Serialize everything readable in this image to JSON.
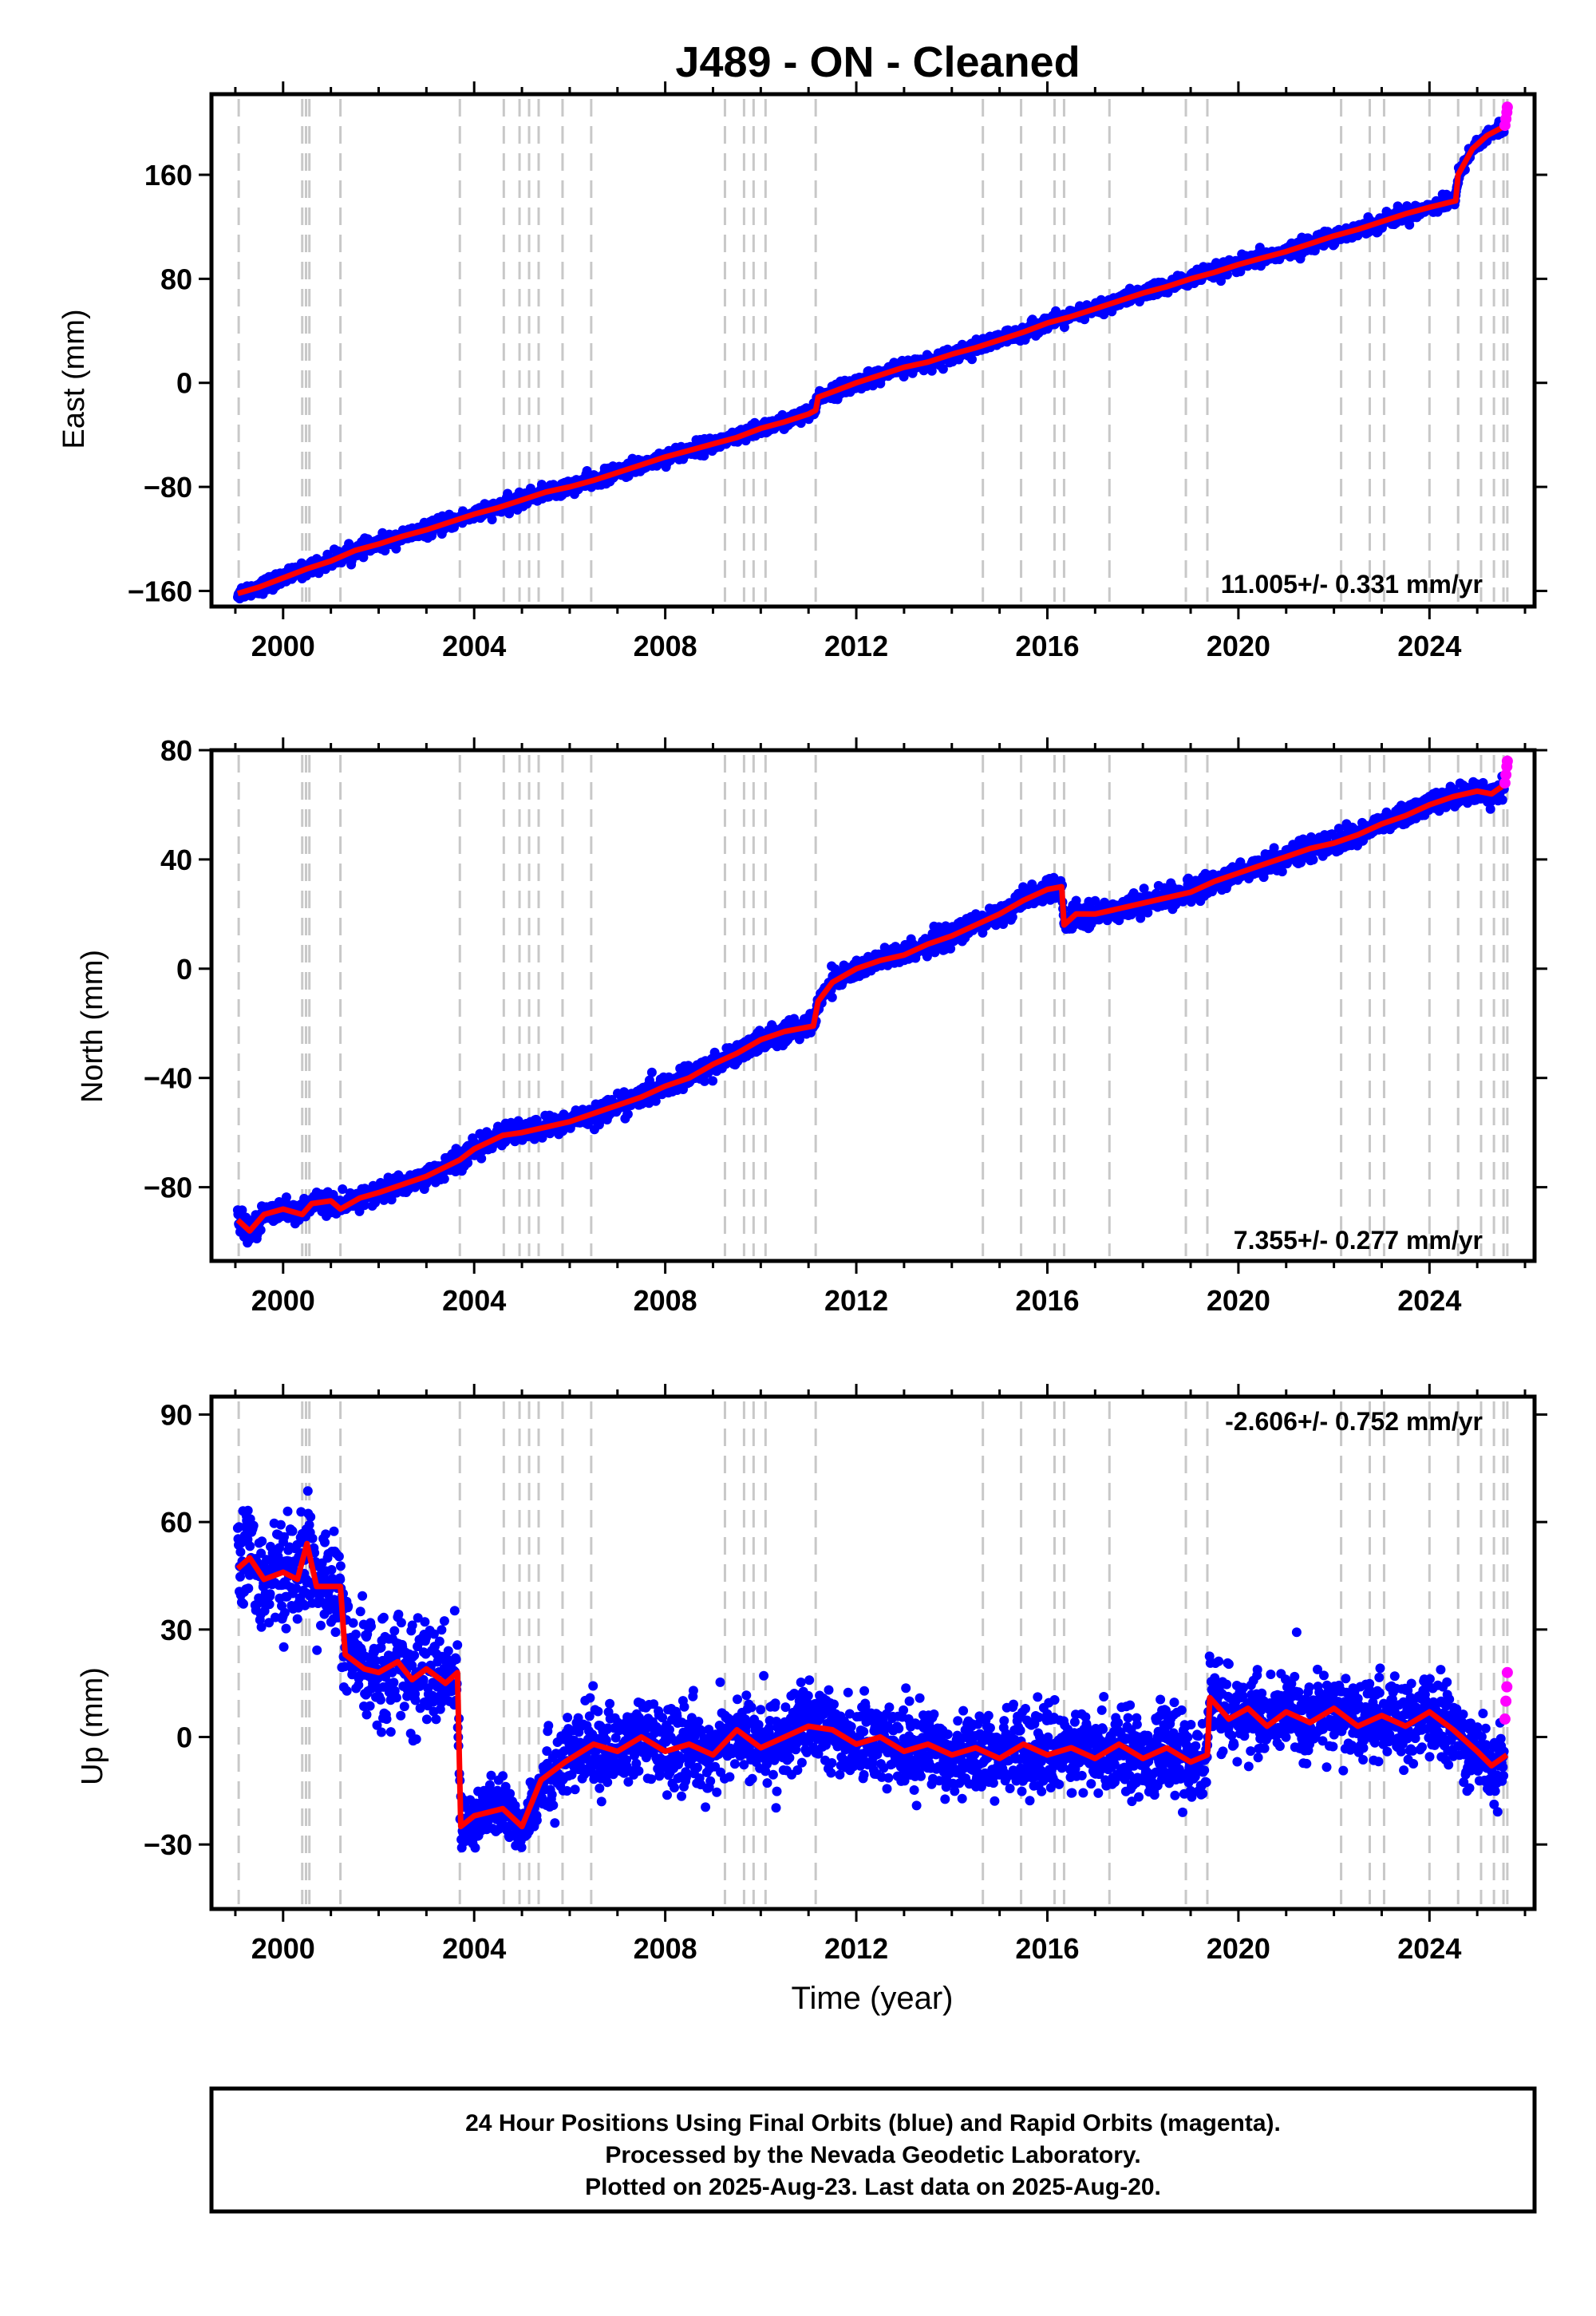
{
  "figure": {
    "title": "J489  - ON - Cleaned",
    "xlabel": "Time (year)",
    "footer": [
      "24 Hour Positions Using Final Orbits (blue) and Rapid Orbits (magenta).",
      "Processed by the Nevada Geodetic Laboratory.",
      "Plotted on 2025-Aug-23. Last data on 2025-Aug-20."
    ],
    "colors": {
      "final": "#0000ff",
      "rapid": "#ff00ff",
      "model": "#ff0000",
      "events": "#c8c8c8"
    }
  },
  "chart_data": [
    {
      "type": "scatter",
      "title": "",
      "xlabel": "",
      "ylabel": "East (mm)",
      "xlim": [
        1998.5,
        2026.2
      ],
      "ylim": [
        -172,
        222
      ],
      "xticks": [
        2000,
        2004,
        2008,
        2012,
        2016,
        2020,
        2024
      ],
      "yticks": [
        -160,
        -80,
        0,
        80,
        160
      ],
      "rate_label": "11.005+/- 0.331 mm/yr",
      "rate_position": "bottom-right",
      "equipment_changes": [
        1999.07,
        2000.4,
        2000.48,
        2000.55,
        2001.2,
        2003.7,
        2004.62,
        2004.95,
        2005.15,
        2005.35,
        2005.85,
        2006.45,
        2009.25,
        2009.65,
        2009.85,
        2010.1,
        2011.15,
        2014.65,
        2015.45,
        2016.15,
        2016.35,
        2017.3,
        2018.9,
        2019.35,
        2022.15,
        2022.75,
        2023.05,
        2024.0,
        2024.6,
        2025.08,
        2025.35,
        2025.55,
        2025.63
      ],
      "model_x": [
        1999.05,
        1999.5,
        2000.0,
        2000.5,
        2001.0,
        2001.5,
        2002.0,
        2002.5,
        2003.0,
        2003.5,
        2004.0,
        2004.5,
        2005.0,
        2005.5,
        2006.0,
        2006.5,
        2007.0,
        2007.5,
        2008.0,
        2008.5,
        2009.0,
        2009.5,
        2010.0,
        2010.5,
        2011.0,
        2011.15,
        2011.2,
        2011.5,
        2012.0,
        2012.5,
        2013.0,
        2013.5,
        2014.0,
        2014.5,
        2015.0,
        2015.5,
        2016.0,
        2016.5,
        2017.0,
        2017.5,
        2018.0,
        2018.5,
        2019.0,
        2019.5,
        2020.0,
        2020.5,
        2021.0,
        2021.5,
        2022.0,
        2022.5,
        2023.0,
        2023.5,
        2024.0,
        2024.55,
        2024.6,
        2024.9,
        2025.2,
        2025.5,
        2025.62
      ],
      "model_y": [
        -162,
        -157,
        -150,
        -143,
        -137,
        -129,
        -124,
        -118,
        -113,
        -107,
        -101,
        -96,
        -90,
        -84,
        -80,
        -75,
        -69,
        -63,
        -57,
        -52,
        -47,
        -42,
        -35,
        -30,
        -24,
        -21,
        -11,
        -7,
        0,
        6,
        12,
        16,
        22,
        27,
        33,
        39,
        46,
        51,
        57,
        63,
        69,
        74,
        80,
        85,
        91,
        96,
        101,
        107,
        113,
        118,
        124,
        130,
        135,
        140,
        160,
        180,
        190,
        196,
        197
      ],
      "band": 5,
      "rapid_points": [
        [
          2025.58,
          198
        ],
        [
          2025.6,
          203
        ],
        [
          2025.62,
          208
        ],
        [
          2025.63,
          212
        ]
      ]
    },
    {
      "type": "scatter",
      "title": "",
      "xlabel": "",
      "ylabel": "North (mm)",
      "xlim": [
        1998.5,
        2026.2
      ],
      "ylim": [
        -107,
        80
      ],
      "xticks": [
        2000,
        2004,
        2008,
        2012,
        2016,
        2020,
        2024
      ],
      "yticks": [
        -80,
        -40,
        0,
        40,
        80
      ],
      "rate_label": "7.355+/- 0.277 mm/yr",
      "rate_position": "bottom-right",
      "equipment_changes": [
        1999.07,
        2000.4,
        2000.48,
        2000.55,
        2001.2,
        2003.7,
        2004.62,
        2004.95,
        2005.15,
        2005.35,
        2005.85,
        2006.45,
        2009.25,
        2009.65,
        2009.85,
        2010.1,
        2011.15,
        2014.65,
        2015.45,
        2016.15,
        2016.35,
        2017.3,
        2018.9,
        2019.35,
        2022.15,
        2022.75,
        2023.05,
        2024.0,
        2024.6,
        2025.08,
        2025.35,
        2025.55,
        2025.63
      ],
      "model_x": [
        1999.05,
        1999.3,
        1999.6,
        2000.0,
        2000.4,
        2000.6,
        2001.0,
        2001.2,
        2001.6,
        2002.0,
        2002.5,
        2003.0,
        2003.7,
        2004.0,
        2004.6,
        2005.0,
        2005.5,
        2006.0,
        2006.5,
        2007.0,
        2007.5,
        2008.0,
        2008.5,
        2009.0,
        2009.5,
        2010.0,
        2010.5,
        2011.1,
        2011.2,
        2011.5,
        2012.0,
        2012.5,
        2013.0,
        2013.5,
        2014.0,
        2014.5,
        2015.0,
        2015.5,
        2016.0,
        2016.3,
        2016.35,
        2016.6,
        2017.0,
        2017.5,
        2018.0,
        2018.5,
        2019.0,
        2019.5,
        2020.0,
        2020.5,
        2021.0,
        2021.5,
        2022.0,
        2022.5,
        2023.0,
        2023.5,
        2024.0,
        2024.5,
        2025.0,
        2025.3,
        2025.62
      ],
      "model_y": [
        -92,
        -96,
        -90,
        -88,
        -90,
        -86,
        -85,
        -88,
        -84,
        -82,
        -79,
        -76,
        -70,
        -66,
        -61,
        -60,
        -58,
        -56,
        -53,
        -50,
        -47,
        -43,
        -40,
        -35,
        -31,
        -26,
        -23,
        -21,
        -12,
        -5,
        0,
        3,
        5,
        9,
        12,
        16,
        20,
        25,
        29,
        30,
        16,
        20,
        20,
        22,
        24,
        26,
        28,
        32,
        35,
        38,
        41,
        44,
        46,
        49,
        53,
        56,
        60,
        63,
        65,
        64,
        68
      ],
      "band": 3.5,
      "rapid_points": [
        [
          2025.58,
          68
        ],
        [
          2025.6,
          71
        ],
        [
          2025.62,
          74
        ],
        [
          2025.63,
          76
        ]
      ]
    },
    {
      "type": "scatter",
      "title": "",
      "xlabel": "Time (year)",
      "ylabel": "Up (mm)",
      "xlim": [
        1998.5,
        2026.2
      ],
      "ylim": [
        -48,
        95
      ],
      "xticks": [
        2000,
        2004,
        2008,
        2012,
        2016,
        2020,
        2024
      ],
      "yticks": [
        -30,
        0,
        30,
        60,
        90
      ],
      "rate_label": "-2.606+/- 0.752 mm/yr",
      "rate_position": "top-right",
      "equipment_changes": [
        1999.07,
        2000.4,
        2000.48,
        2000.55,
        2001.2,
        2003.7,
        2004.62,
        2004.95,
        2005.15,
        2005.35,
        2005.85,
        2006.45,
        2009.25,
        2009.65,
        2009.85,
        2010.1,
        2011.15,
        2014.65,
        2015.45,
        2016.15,
        2016.35,
        2017.3,
        2018.9,
        2019.35,
        2022.15,
        2022.75,
        2023.05,
        2024.0,
        2024.6,
        2025.08,
        2025.35,
        2025.55,
        2025.63
      ],
      "model_x": [
        1999.05,
        1999.3,
        1999.6,
        2000.0,
        2000.3,
        2000.5,
        2000.7,
        2001.2,
        2001.3,
        2001.7,
        2002.0,
        2002.4,
        2002.7,
        2003.0,
        2003.4,
        2003.65,
        2003.72,
        2004.0,
        2004.6,
        2005.0,
        2005.4,
        2005.9,
        2006.5,
        2007.0,
        2007.5,
        2008.0,
        2008.5,
        2009.0,
        2009.5,
        2010.0,
        2010.5,
        2011.0,
        2011.5,
        2012.0,
        2012.5,
        2013.0,
        2013.5,
        2014.0,
        2014.5,
        2015.0,
        2015.5,
        2016.0,
        2016.5,
        2017.0,
        2017.5,
        2018.0,
        2018.5,
        2019.0,
        2019.35,
        2019.4,
        2019.8,
        2020.2,
        2020.6,
        2021.0,
        2021.5,
        2022.0,
        2022.5,
        2023.0,
        2023.5,
        2024.0,
        2024.5,
        2025.0,
        2025.3,
        2025.62
      ],
      "model_y": [
        47,
        50,
        44,
        46,
        44,
        54,
        42,
        42,
        23,
        19,
        18,
        21,
        16,
        19,
        15,
        18,
        -25,
        -22,
        -20,
        -25,
        -12,
        -7,
        -2,
        -4,
        0,
        -4,
        -2,
        -5,
        2,
        -3,
        0,
        3,
        2,
        -2,
        0,
        -4,
        -2,
        -5,
        -3,
        -6,
        -2,
        -5,
        -3,
        -6,
        -2,
        -6,
        -3,
        -7,
        -5,
        11,
        5,
        8,
        3,
        7,
        4,
        8,
        3,
        6,
        3,
        7,
        2,
        -4,
        -8,
        -5
      ],
      "band": 10,
      "rapid_points": [
        [
          2025.58,
          5
        ],
        [
          2025.6,
          10
        ],
        [
          2025.62,
          14
        ],
        [
          2025.63,
          18
        ]
      ]
    }
  ]
}
